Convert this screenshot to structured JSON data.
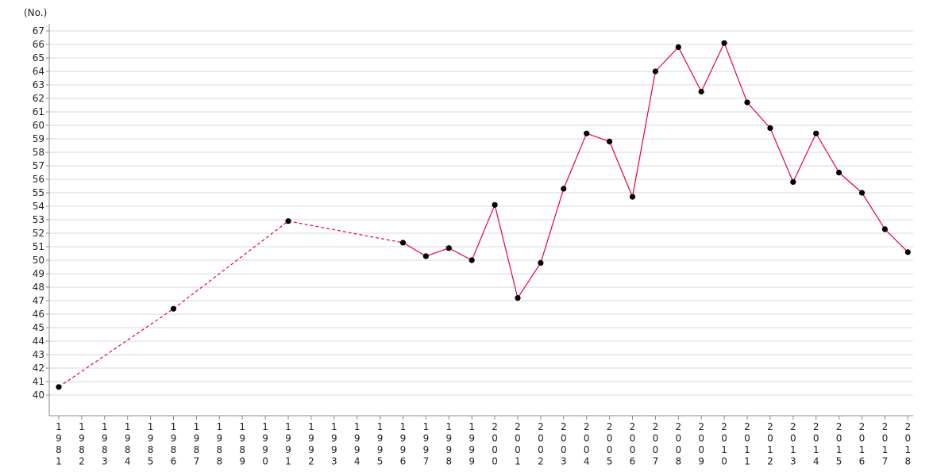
{
  "chart_data": {
    "type": "line",
    "y_unit_label": "(No.)",
    "x": [
      "1981",
      "1982",
      "1983",
      "1984",
      "1985",
      "1986",
      "1987",
      "1988",
      "1989",
      "1990",
      "1991",
      "1992",
      "1993",
      "1994",
      "1995",
      "1996",
      "1997",
      "1998",
      "1999",
      "2000",
      "2001",
      "2002",
      "2003",
      "2004",
      "2005",
      "2006",
      "2007",
      "2008",
      "2009",
      "2010",
      "2011",
      "2012",
      "2013",
      "2014",
      "2015",
      "2016",
      "2017",
      "2018"
    ],
    "points": [
      {
        "x": "1981",
        "y": 40.6
      },
      {
        "x": "1986",
        "y": 46.4
      },
      {
        "x": "1991",
        "y": 52.9
      },
      {
        "x": "1996",
        "y": 51.3
      },
      {
        "x": "1997",
        "y": 50.3
      },
      {
        "x": "1998",
        "y": 50.9
      },
      {
        "x": "1999",
        "y": 50.0
      },
      {
        "x": "2000",
        "y": 54.1
      },
      {
        "x": "2001",
        "y": 47.2
      },
      {
        "x": "2002",
        "y": 49.8
      },
      {
        "x": "2003",
        "y": 55.3
      },
      {
        "x": "2004",
        "y": 59.4
      },
      {
        "x": "2005",
        "y": 58.8
      },
      {
        "x": "2006",
        "y": 54.7
      },
      {
        "x": "2007",
        "y": 64.0
      },
      {
        "x": "2008",
        "y": 65.8
      },
      {
        "x": "2009",
        "y": 62.5
      },
      {
        "x": "2010",
        "y": 66.1
      },
      {
        "x": "2011",
        "y": 61.7
      },
      {
        "x": "2012",
        "y": 59.8
      },
      {
        "x": "2013",
        "y": 55.8
      },
      {
        "x": "2014",
        "y": 59.4
      },
      {
        "x": "2015",
        "y": 56.5
      },
      {
        "x": "2016",
        "y": 55.0
      },
      {
        "x": "2017",
        "y": 52.3
      },
      {
        "x": "2018",
        "y": 50.6
      }
    ],
    "y_ticks": [
      40,
      41,
      42,
      43,
      44,
      45,
      46,
      47,
      48,
      49,
      50,
      51,
      52,
      53,
      54,
      55,
      56,
      57,
      58,
      59,
      60,
      61,
      62,
      63,
      64,
      65,
      66,
      67
    ],
    "ylim": [
      39,
      68
    ],
    "grid": true,
    "line_color": "#e8003d",
    "marker_color": "#000000",
    "gap_line_style": "dashed"
  }
}
